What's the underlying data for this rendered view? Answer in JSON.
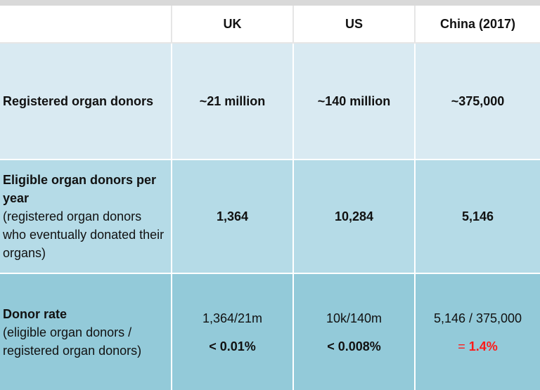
{
  "colors": {
    "header_bg": "#ffffff",
    "row1_bg": "#d9eaf2",
    "row2_bg": "#b5dbe7",
    "row3_bg": "#93cad9",
    "highlight": "#ff1a1a"
  },
  "header": {
    "blank": "",
    "uk": "UK",
    "us": "US",
    "china": "China (2017)"
  },
  "rows": {
    "registered": {
      "label": "Registered organ donors",
      "uk": "~21 million",
      "us": "~140 million",
      "china": "~375,000"
    },
    "eligible": {
      "label_bold": "Eligible organ donors per year",
      "label_note": "(registered organ donors who eventually donated their organs)",
      "uk": "1,364",
      "us": "10,284",
      "china": "5,146"
    },
    "rate": {
      "label_bold": "Donor rate",
      "label_note": "(eligible organ donors / registered organ donors)",
      "uk_calc": "1,364/21m",
      "uk_pct": "< 0.01%",
      "us_calc": "10k/140m",
      "us_pct": "< 0.008%",
      "china_calc": "5,146 / 375,000",
      "china_eq": "= ",
      "china_pct": "1.4%"
    }
  }
}
